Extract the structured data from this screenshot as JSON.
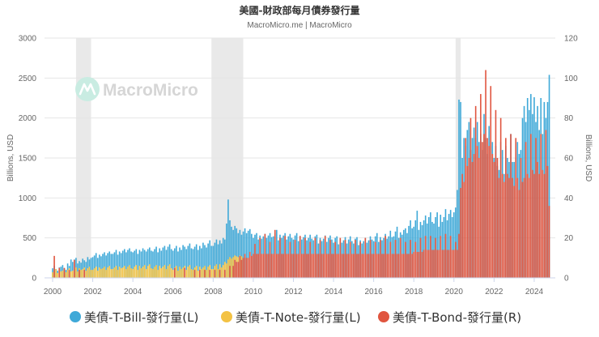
{
  "watermark": {
    "text": "MacroMicro",
    "icon": "macromicro-logo-icon"
  },
  "chart_data": {
    "type": "bar",
    "title": "美國-財政部每月債券發行量",
    "subtitle": "MacroMicro.me | MacroMicro",
    "ylabel": "Billions, USD",
    "y2label": "Billions, USD",
    "ylim": [
      0,
      3000
    ],
    "y2lim": [
      0,
      120
    ],
    "y_ticks": [
      0,
      500,
      1000,
      1500,
      2000,
      2500,
      3000
    ],
    "y2_ticks": [
      0,
      20,
      40,
      60,
      80,
      100,
      120
    ],
    "x_ticks": [
      "2000",
      "2002",
      "2004",
      "2006",
      "2008",
      "2010",
      "2012",
      "2014",
      "2016",
      "2018",
      "2020",
      "2022",
      "2024"
    ],
    "grid": true,
    "legend_position": "bottom",
    "shaded_periods": [
      [
        "2001-03",
        "2001-11"
      ],
      [
        "2007-12",
        "2009-06"
      ],
      [
        "2020-02",
        "2020-04"
      ]
    ],
    "x": [
      "2000-01",
      "2000-02",
      "2000-03",
      "2000-04",
      "2000-05",
      "2000-06",
      "2000-07",
      "2000-08",
      "2000-09",
      "2000-10",
      "2000-11",
      "2000-12",
      "2001-01",
      "2001-02",
      "2001-03",
      "2001-04",
      "2001-05",
      "2001-06",
      "2001-07",
      "2001-08",
      "2001-09",
      "2001-10",
      "2001-11",
      "2001-12",
      "2002-01",
      "2002-02",
      "2002-03",
      "2002-04",
      "2002-05",
      "2002-06",
      "2002-07",
      "2002-08",
      "2002-09",
      "2002-10",
      "2002-11",
      "2002-12",
      "2003-01",
      "2003-02",
      "2003-03",
      "2003-04",
      "2003-05",
      "2003-06",
      "2003-07",
      "2003-08",
      "2003-09",
      "2003-10",
      "2003-11",
      "2003-12",
      "2004-01",
      "2004-02",
      "2004-03",
      "2004-04",
      "2004-05",
      "2004-06",
      "2004-07",
      "2004-08",
      "2004-09",
      "2004-10",
      "2004-11",
      "2004-12",
      "2005-01",
      "2005-02",
      "2005-03",
      "2005-04",
      "2005-05",
      "2005-06",
      "2005-07",
      "2005-08",
      "2005-09",
      "2005-10",
      "2005-11",
      "2005-12",
      "2006-01",
      "2006-02",
      "2006-03",
      "2006-04",
      "2006-05",
      "2006-06",
      "2006-07",
      "2006-08",
      "2006-09",
      "2006-10",
      "2006-11",
      "2006-12",
      "2007-01",
      "2007-02",
      "2007-03",
      "2007-04",
      "2007-05",
      "2007-06",
      "2007-07",
      "2007-08",
      "2007-09",
      "2007-10",
      "2007-11",
      "2007-12",
      "2008-01",
      "2008-02",
      "2008-03",
      "2008-04",
      "2008-05",
      "2008-06",
      "2008-07",
      "2008-08",
      "2008-09",
      "2008-10",
      "2008-11",
      "2008-12",
      "2009-01",
      "2009-02",
      "2009-03",
      "2009-04",
      "2009-05",
      "2009-06",
      "2009-07",
      "2009-08",
      "2009-09",
      "2009-10",
      "2009-11",
      "2009-12",
      "2010-01",
      "2010-02",
      "2010-03",
      "2010-04",
      "2010-05",
      "2010-06",
      "2010-07",
      "2010-08",
      "2010-09",
      "2010-10",
      "2010-11",
      "2010-12",
      "2011-01",
      "2011-02",
      "2011-03",
      "2011-04",
      "2011-05",
      "2011-06",
      "2011-07",
      "2011-08",
      "2011-09",
      "2011-10",
      "2011-11",
      "2011-12",
      "2012-01",
      "2012-02",
      "2012-03",
      "2012-04",
      "2012-05",
      "2012-06",
      "2012-07",
      "2012-08",
      "2012-09",
      "2012-10",
      "2012-11",
      "2012-12",
      "2013-01",
      "2013-02",
      "2013-03",
      "2013-04",
      "2013-05",
      "2013-06",
      "2013-07",
      "2013-08",
      "2013-09",
      "2013-10",
      "2013-11",
      "2013-12",
      "2014-01",
      "2014-02",
      "2014-03",
      "2014-04",
      "2014-05",
      "2014-06",
      "2014-07",
      "2014-08",
      "2014-09",
      "2014-10",
      "2014-11",
      "2014-12",
      "2015-01",
      "2015-02",
      "2015-03",
      "2015-04",
      "2015-05",
      "2015-06",
      "2015-07",
      "2015-08",
      "2015-09",
      "2015-10",
      "2015-11",
      "2015-12",
      "2016-01",
      "2016-02",
      "2016-03",
      "2016-04",
      "2016-05",
      "2016-06",
      "2016-07",
      "2016-08",
      "2016-09",
      "2016-10",
      "2016-11",
      "2016-12",
      "2017-01",
      "2017-02",
      "2017-03",
      "2017-04",
      "2017-05",
      "2017-06",
      "2017-07",
      "2017-08",
      "2017-09",
      "2017-10",
      "2017-11",
      "2017-12",
      "2018-01",
      "2018-02",
      "2018-03",
      "2018-04",
      "2018-05",
      "2018-06",
      "2018-07",
      "2018-08",
      "2018-09",
      "2018-10",
      "2018-11",
      "2018-12",
      "2019-01",
      "2019-02",
      "2019-03",
      "2019-04",
      "2019-05",
      "2019-06",
      "2019-07",
      "2019-08",
      "2019-09",
      "2019-10",
      "2019-11",
      "2019-12",
      "2020-01",
      "2020-02",
      "2020-03",
      "2020-04",
      "2020-05",
      "2020-06",
      "2020-07",
      "2020-08",
      "2020-09",
      "2020-10",
      "2020-11",
      "2020-12",
      "2021-01",
      "2021-02",
      "2021-03",
      "2021-04",
      "2021-05",
      "2021-06",
      "2021-07",
      "2021-08",
      "2021-09",
      "2021-10",
      "2021-11",
      "2021-12",
      "2022-01",
      "2022-02",
      "2022-03",
      "2022-04",
      "2022-05",
      "2022-06",
      "2022-07",
      "2022-08",
      "2022-09",
      "2022-10",
      "2022-11",
      "2022-12",
      "2023-01",
      "2023-02",
      "2023-03",
      "2023-04",
      "2023-05",
      "2023-06",
      "2023-07",
      "2023-08",
      "2023-09",
      "2023-10",
      "2023-11",
      "2023-12",
      "2024-01",
      "2024-02",
      "2024-03",
      "2024-04",
      "2024-05",
      "2024-06",
      "2024-07",
      "2024-08",
      "2024-09",
      "2024-10"
    ],
    "series": [
      {
        "name": "美債-T-Bill-發行量(L)",
        "axis": "left",
        "color": "#3fa9d8",
        "values": [
          120,
          150,
          110,
          90,
          130,
          140,
          160,
          120,
          100,
          180,
          150,
          230,
          200,
          230,
          250,
          180,
          210,
          190,
          240,
          220,
          200,
          260,
          230,
          250,
          260,
          280,
          310,
          250,
          290,
          270,
          300,
          320,
          280,
          310,
          330,
          300,
          300,
          320,
          350,
          290,
          330,
          310,
          340,
          360,
          320,
          350,
          370,
          330,
          320,
          340,
          360,
          300,
          350,
          330,
          370,
          350,
          330,
          360,
          380,
          340,
          330,
          360,
          390,
          320,
          370,
          340,
          380,
          400,
          350,
          390,
          420,
          360,
          340,
          370,
          400,
          330,
          380,
          350,
          410,
          390,
          360,
          400,
          430,
          370,
          360,
          390,
          420,
          350,
          400,
          370,
          440,
          410,
          380,
          430,
          470,
          400,
          400,
          440,
          480,
          420,
          470,
          430,
          500,
          480,
          680,
          980,
          720,
          640,
          600,
          650,
          620,
          560,
          600,
          540,
          580,
          620,
          560,
          590,
          610,
          550,
          500,
          540,
          560,
          480,
          530,
          490,
          520,
          550,
          500,
          530,
          560,
          510,
          520,
          560,
          600,
          470,
          540,
          500,
          530,
          560,
          480,
          520,
          550,
          500,
          480,
          530,
          560,
          460,
          520,
          480,
          510,
          540,
          470,
          500,
          540,
          490,
          470,
          520,
          540,
          430,
          500,
          460,
          490,
          530,
          450,
          500,
          530,
          480,
          440,
          500,
          520,
          420,
          480,
          440,
          470,
          510,
          430,
          480,
          520,
          460,
          430,
          490,
          510,
          410,
          470,
          430,
          460,
          500,
          440,
          470,
          520,
          480,
          460,
          520,
          560,
          450,
          510,
          470,
          500,
          550,
          490,
          520,
          590,
          510,
          520,
          580,
          640,
          500,
          570,
          540,
          600,
          620,
          560,
          650,
          720,
          620,
          640,
          720,
          840,
          600,
          700,
          660,
          720,
          780,
          680,
          760,
          820,
          700,
          680,
          760,
          820,
          640,
          790,
          700,
          760,
          860,
          720,
          800,
          850,
          760,
          820,
          880,
          1100,
          2230,
          2200,
          1500,
          1750,
          1650,
          1850,
          1950,
          1600,
          1750,
          1880,
          1750,
          1950,
          1700,
          1800,
          1600,
          2050,
          1750,
          1550,
          1900,
          1650,
          1700,
          1500,
          1650,
          1400,
          1350,
          1700,
          1600,
          1300,
          1650,
          1500,
          1450,
          1800,
          1450,
          1450,
          1500,
          1700,
          1550,
          1600,
          2000,
          2150,
          1950,
          2250,
          2100,
          2300,
          2050,
          2260,
          1950,
          2150,
          1850,
          2250,
          1800,
          2200,
          2000,
          2200,
          2540
        ]
      },
      {
        "name": "美債-T-Note-發行量(L)",
        "axis": "left",
        "color": "#f3c244",
        "values": [
          70,
          90,
          110,
          60,
          100,
          80,
          90,
          110,
          70,
          100,
          120,
          80,
          90,
          110,
          130,
          80,
          120,
          100,
          110,
          130,
          90,
          120,
          140,
          100,
          100,
          120,
          140,
          90,
          130,
          110,
          120,
          140,
          100,
          130,
          150,
          110,
          110,
          130,
          150,
          100,
          140,
          120,
          130,
          150,
          110,
          140,
          160,
          120,
          110,
          140,
          160,
          100,
          150,
          120,
          140,
          160,
          110,
          150,
          170,
          120,
          110,
          140,
          160,
          100,
          150,
          120,
          140,
          160,
          110,
          150,
          170,
          120,
          100,
          130,
          150,
          90,
          140,
          110,
          130,
          150,
          100,
          140,
          160,
          110,
          100,
          130,
          150,
          90,
          140,
          110,
          130,
          150,
          100,
          140,
          160,
          110,
          110,
          150,
          170,
          110,
          170,
          130,
          160,
          200,
          180,
          230,
          260,
          240,
          260,
          280,
          270,
          260,
          280,
          270,
          null,
          null,
          null,
          null,
          null,
          null,
          null,
          null,
          null,
          null,
          null,
          null,
          null,
          null,
          null,
          null,
          null,
          null,
          null,
          null,
          null,
          null,
          null,
          null,
          null,
          null,
          null,
          null,
          null,
          null,
          null,
          null,
          null,
          null,
          null,
          null,
          null,
          null,
          null,
          null,
          null,
          null,
          null,
          null,
          null,
          null,
          null,
          null,
          null,
          null,
          null,
          null,
          null,
          null,
          null,
          null,
          null,
          null,
          null,
          null,
          null,
          null,
          null,
          null,
          null,
          null,
          null,
          null,
          null,
          null,
          null,
          null,
          null,
          null,
          null,
          null,
          null,
          null,
          null,
          null,
          null,
          null,
          null,
          null,
          null,
          null,
          null,
          null,
          null,
          null,
          null,
          null,
          null,
          null,
          null,
          null,
          null,
          null,
          null,
          null,
          null,
          null,
          null,
          null,
          null,
          null,
          null,
          null,
          null,
          null,
          null,
          null,
          null,
          null,
          null,
          null,
          null,
          null,
          null,
          null,
          null,
          null,
          null,
          null,
          null,
          null,
          null,
          null,
          null,
          null,
          null,
          null,
          null,
          null,
          null,
          null,
          null,
          null,
          null,
          null,
          null,
          null,
          null,
          null,
          null,
          null,
          null,
          null,
          null,
          null,
          null,
          null,
          null,
          null,
          null,
          null,
          null,
          null,
          null,
          null,
          null,
          null,
          null,
          null,
          null,
          null,
          null,
          null,
          null,
          null,
          null,
          null,
          null,
          null,
          null,
          null,
          null,
          null,
          null,
          null,
          null,
          null,
          null,
          null
        ]
      },
      {
        "name": "美債-T-Bond-發行量(R)",
        "axis": "right",
        "color": "#e0553f",
        "values": [
          0,
          11,
          0,
          0,
          5,
          0,
          0,
          5,
          0,
          0,
          4,
          0,
          0,
          9,
          0,
          0,
          4,
          0,
          0,
          4,
          0,
          0,
          0,
          0,
          0,
          0,
          0,
          0,
          0,
          0,
          0,
          0,
          0,
          0,
          0,
          0,
          0,
          0,
          0,
          0,
          0,
          0,
          0,
          0,
          0,
          0,
          0,
          0,
          0,
          0,
          0,
          0,
          0,
          0,
          0,
          0,
          0,
          0,
          0,
          0,
          0,
          0,
          0,
          0,
          0,
          0,
          0,
          0,
          0,
          0,
          0,
          0,
          0,
          5,
          0,
          0,
          0,
          0,
          0,
          5,
          0,
          0,
          0,
          0,
          0,
          4,
          0,
          0,
          4,
          0,
          0,
          4,
          0,
          0,
          4,
          0,
          0,
          4,
          0,
          0,
          4,
          0,
          0,
          4,
          0,
          0,
          6,
          0,
          6,
          9,
          8,
          8,
          11,
          9,
          10,
          12,
          10,
          10,
          13,
          11,
          12,
          17,
          12,
          12,
          20,
          12,
          12,
          22,
          12,
          12,
          18,
          12,
          12,
          24,
          12,
          12,
          20,
          12,
          12,
          21,
          12,
          12,
          18,
          12,
          12,
          19,
          12,
          12,
          21,
          12,
          12,
          20,
          12,
          12,
          18,
          12,
          12,
          20,
          12,
          12,
          19,
          12,
          12,
          21,
          12,
          12,
          19,
          12,
          12,
          18,
          12,
          12,
          20,
          12,
          12,
          19,
          12,
          12,
          18,
          12,
          12,
          19,
          12,
          12,
          18,
          12,
          12,
          20,
          12,
          12,
          19,
          12,
          12,
          18,
          12,
          12,
          19,
          12,
          12,
          21,
          12,
          12,
          18,
          12,
          12,
          19,
          12,
          12,
          20,
          12,
          12,
          18,
          12,
          12,
          19,
          12,
          13,
          18,
          13,
          13,
          20,
          13,
          14,
          21,
          14,
          14,
          21,
          14,
          14,
          20,
          14,
          14,
          21,
          14,
          14,
          22,
          14,
          14,
          21,
          14,
          14,
          18,
          14,
          22,
          45,
          52,
          48,
          70,
          56,
          60,
          80,
          58,
          62,
          86,
          66,
          60,
          92,
          68,
          72,
          104,
          70,
          66,
          96,
          62,
          58,
          84,
          60,
          50,
          80,
          52,
          48,
          70,
          52,
          50,
          72,
          50,
          46,
          70,
          50,
          44,
          60,
          48,
          50,
          68,
          52,
          50,
          72,
          54,
          52,
          70,
          58,
          52,
          72,
          54,
          52,
          74,
          56,
          36
        ]
      }
    ]
  }
}
